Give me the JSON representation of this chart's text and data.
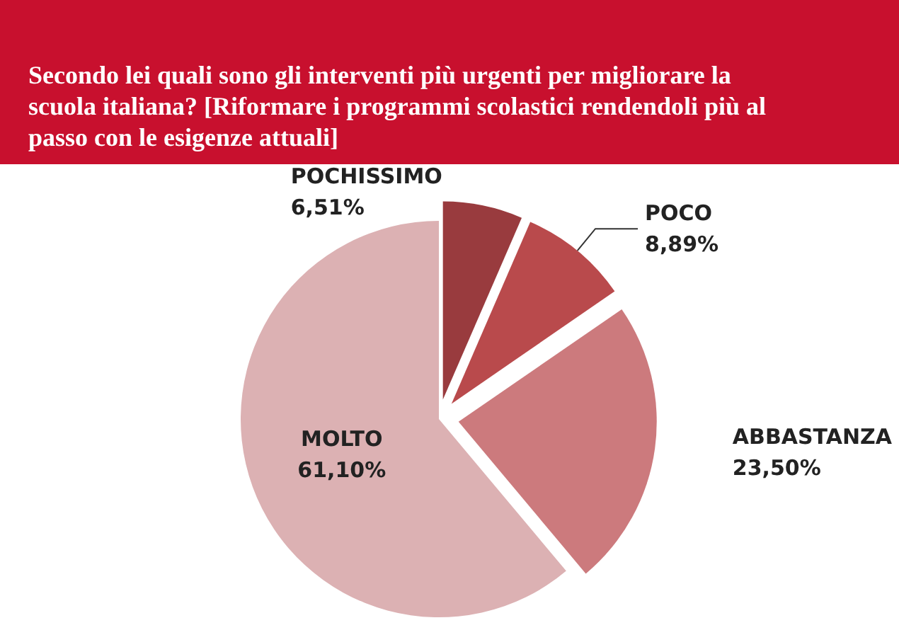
{
  "chart_data": {
    "type": "pie",
    "title": "Secondo lei quali sono gli interventi più urgenti per migliorare la scuola italiana? [Riformare i programmi scolastici rendendoli più al passo con le esigenze attuali]",
    "categories": [
      "POCHISSIMO",
      "POCO",
      "ABBASTANZA",
      "MOLTO"
    ],
    "values": [
      6.51,
      8.89,
      23.5,
      61.1
    ],
    "value_labels": [
      "6,51%",
      "8,89%",
      "23,50%",
      "61,10%"
    ],
    "colors": [
      "#993b3e",
      "#b94a4c",
      "#cc7a7d",
      "#dcb1b3"
    ]
  }
}
